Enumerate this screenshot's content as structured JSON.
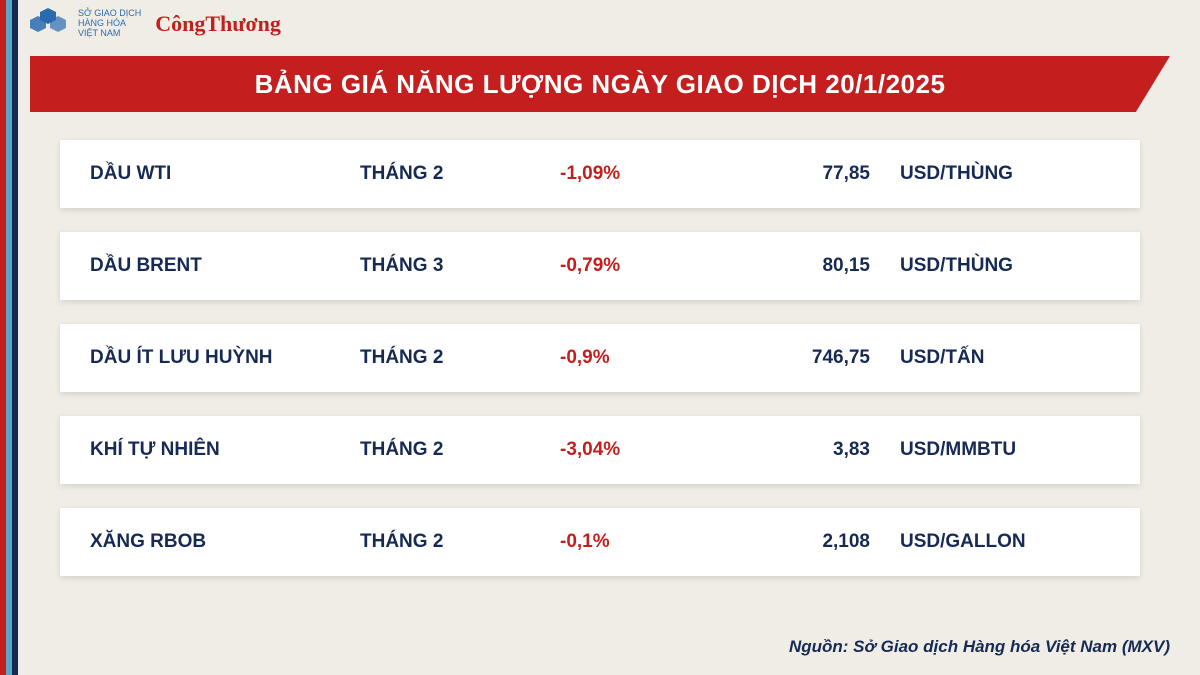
{
  "stripes": [
    "#c41e1e",
    "#5aa6c4",
    "#162a54"
  ],
  "logo": {
    "org_line1": "SỞ GIAO DỊCH",
    "org_line2": "HÀNG HÓA",
    "org_line3": "VIỆT NAM",
    "brand": "CôngThương",
    "logo_color": "#2a6bb0"
  },
  "title": "BẢNG GIÁ NĂNG LƯỢNG NGÀY GIAO DỊCH 20/1/2025",
  "title_bg": "#c41e1e",
  "title_fg": "#ffffff",
  "table": {
    "text_color": "#162a54",
    "change_color": "#c41e1e",
    "row_bg": "#ffffff",
    "rows": [
      {
        "name": "DẦU WTI",
        "period": "THÁNG 2",
        "change": "-1,09%",
        "price": "77,85",
        "unit": "USD/THÙNG"
      },
      {
        "name": "DẦU BRENT",
        "period": "THÁNG 3",
        "change": "-0,79%",
        "price": "80,15",
        "unit": "USD/THÙNG"
      },
      {
        "name": "DẦU ÍT LƯU HUỲNH",
        "period": "THÁNG 2",
        "change": "-0,9%",
        "price": "746,75",
        "unit": "USD/TẤN"
      },
      {
        "name": "KHÍ TỰ NHIÊN",
        "period": "THÁNG 2",
        "change": "-3,04%",
        "price": "3,83",
        "unit": "USD/MMBTU"
      },
      {
        "name": "XĂNG RBOB",
        "period": "THÁNG 2",
        "change": "-0,1%",
        "price": "2,108",
        "unit": "USD/GALLON"
      }
    ]
  },
  "source": "Nguồn: Sở Giao dịch Hàng hóa Việt Nam (MXV)"
}
